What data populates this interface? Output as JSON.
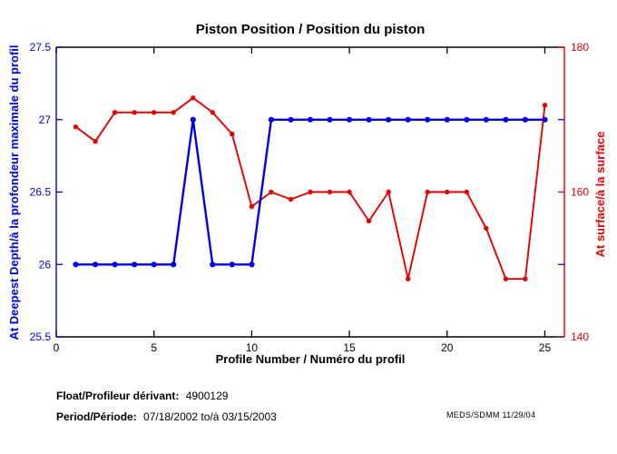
{
  "figure": {
    "title": "Piston Position / Position du piston",
    "x_axis_label": "Profile Number / Numéro du profil",
    "y_left_axis_label": "At Deepest Depth/à la profondeur maximale du profil",
    "y_right_axis_label": "At surface/à la surface",
    "footer": {
      "float_label": "Float/Profileur dérivant:",
      "float_value": "4900129",
      "period_label": "Period/Période:",
      "period_value": "07/18/2002 to/à 03/15/2003",
      "credit": "MEDS/SDMM 11/29/04"
    }
  },
  "chart_data": {
    "type": "line",
    "title": "Piston Position / Position du piston",
    "xlabel": "Profile Number / Numéro du profil",
    "x": [
      1,
      2,
      3,
      4,
      5,
      6,
      7,
      8,
      9,
      10,
      11,
      12,
      13,
      14,
      15,
      16,
      17,
      18,
      19,
      20,
      21,
      22,
      23,
      24,
      25
    ],
    "xlim": [
      0,
      26
    ],
    "xticks": [
      0,
      5,
      10,
      15,
      20,
      25
    ],
    "grid": false,
    "legend": "none",
    "axes": {
      "left": {
        "label": "At Deepest Depth/à la profondeur maximale du profil",
        "lim": [
          25.5,
          27.5
        ],
        "ticks": [
          25.5,
          26,
          26.5,
          27,
          27.5
        ],
        "color": "#0000E8"
      },
      "right": {
        "label": "At surface/à la surface",
        "lim": [
          140,
          180
        ],
        "ticks": [
          140,
          160,
          180
        ],
        "color": "#E60000",
        "extra_blue_ticks_left_values": [
          26,
          27
        ]
      }
    },
    "frame_color": "#000000",
    "series": [
      {
        "name": "At Deepest Depth/à la profondeur maximale du profil",
        "axis": "left",
        "color": "#0000E8",
        "marker": "dot",
        "line_width": 2.4,
        "values": [
          26,
          26,
          26,
          26,
          26,
          26,
          27,
          26,
          26,
          26,
          27,
          27,
          27,
          27,
          27,
          27,
          27,
          27,
          27,
          27,
          27,
          27,
          27,
          27,
          27
        ]
      },
      {
        "name": "At surface/à la surface",
        "axis": "right",
        "color": "#E60000",
        "marker": "dot",
        "line_width": 1.9,
        "values": [
          169,
          167,
          171,
          171,
          171,
          171,
          173,
          171,
          168,
          158,
          160,
          159,
          160,
          160,
          160,
          156,
          160,
          148,
          160,
          160,
          160,
          155,
          148,
          148,
          172
        ]
      }
    ]
  }
}
